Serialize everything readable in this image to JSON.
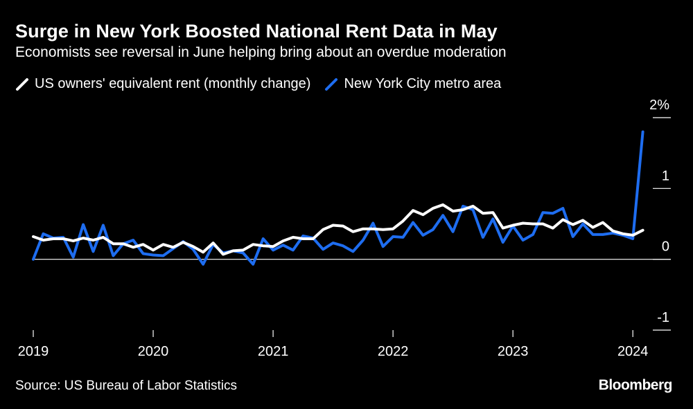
{
  "header": {
    "title": "Surge in New York Boosted National Rent Data in May",
    "subtitle": "Economists see reversal in June helping bring about an overdue moderation"
  },
  "legend": [
    {
      "label": "US owners' equivalent rent (monthly change)",
      "color": "#ffffff"
    },
    {
      "label": "New York City metro area",
      "color": "#1e6df0"
    }
  ],
  "footer": {
    "source": "Source: US Bureau of Labor Statistics",
    "brand": "Bloomberg"
  },
  "chart_data": {
    "type": "line",
    "x_tick_labels": [
      "2019",
      "2020",
      "2021",
      "2022",
      "2023",
      "2024"
    ],
    "y_tick_labels": [
      "2%",
      "1",
      "0",
      "-1"
    ],
    "y_ticks": [
      2,
      1,
      0,
      -1
    ],
    "ylim": [
      -1,
      2
    ],
    "grid": false,
    "legend_position": "top-left",
    "x_start": "2019-01",
    "series": [
      {
        "name": "US owners' equivalent rent (monthly change)",
        "color": "#ffffff",
        "values": [
          0.32,
          0.27,
          0.29,
          0.29,
          0.26,
          0.3,
          0.27,
          0.31,
          0.22,
          0.22,
          0.17,
          0.21,
          0.13,
          0.21,
          0.17,
          0.24,
          0.18,
          0.1,
          0.23,
          0.07,
          0.12,
          0.13,
          0.21,
          0.19,
          0.18,
          0.26,
          0.31,
          0.29,
          0.29,
          0.42,
          0.48,
          0.47,
          0.39,
          0.43,
          0.43,
          0.42,
          0.43,
          0.54,
          0.69,
          0.63,
          0.72,
          0.77,
          0.68,
          0.7,
          0.75,
          0.65,
          0.66,
          0.44,
          0.48,
          0.51,
          0.5,
          0.5,
          0.44,
          0.56,
          0.49,
          0.55,
          0.45,
          0.52,
          0.4,
          0.36,
          0.34,
          0.41
        ]
      },
      {
        "name": "New York City metro area",
        "color": "#1e6df0",
        "values": [
          0.0,
          0.36,
          0.3,
          0.31,
          0.03,
          0.49,
          0.11,
          0.48,
          0.05,
          0.22,
          0.27,
          0.08,
          0.06,
          0.05,
          0.15,
          0.25,
          0.14,
          -0.07,
          0.21,
          0.09,
          0.12,
          0.09,
          -0.07,
          0.29,
          0.13,
          0.2,
          0.13,
          0.33,
          0.3,
          0.14,
          0.23,
          0.19,
          0.11,
          0.27,
          0.51,
          0.18,
          0.32,
          0.31,
          0.52,
          0.34,
          0.42,
          0.62,
          0.39,
          0.75,
          0.7,
          0.31,
          0.57,
          0.24,
          0.47,
          0.27,
          0.35,
          0.66,
          0.65,
          0.72,
          0.32,
          0.5,
          0.35,
          0.35,
          0.37,
          0.34,
          0.29,
          1.8
        ]
      }
    ]
  }
}
